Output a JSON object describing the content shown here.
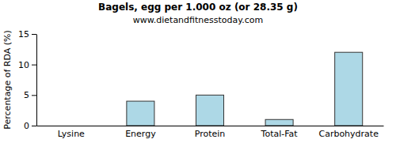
{
  "chart_data": {
    "type": "bar",
    "title": "Bagels, egg per 1.000 oz (or 28.35 g)",
    "subtitle": "www.dietandfitnesstoday.com",
    "y_label": "Percentage of RDA (%)",
    "categories": [
      "Lysine",
      "Energy",
      "Protein",
      "Total-Fat",
      "Carbohydrate"
    ],
    "values": [
      0,
      4,
      5,
      1,
      12
    ],
    "color": "#add8e6",
    "ylim": [
      0,
      15
    ],
    "yticks": [
      0,
      5,
      10,
      15
    ],
    "grid": false
  }
}
